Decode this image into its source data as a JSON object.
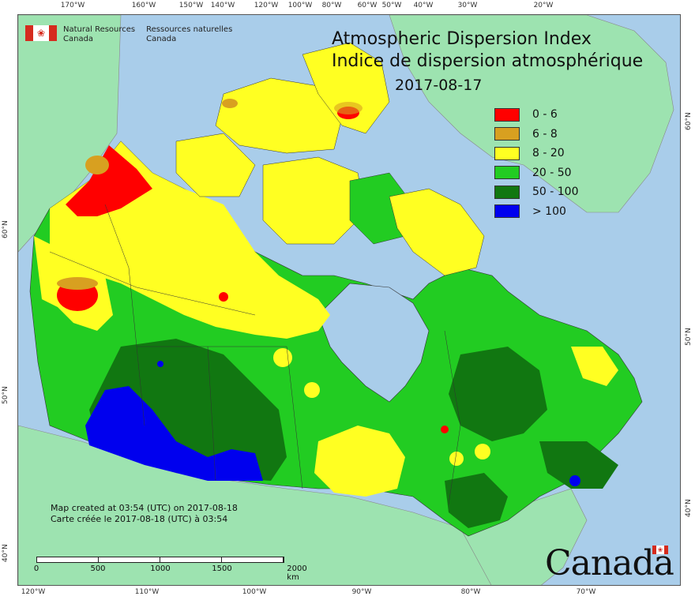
{
  "map": {
    "title_en": "Atmospheric Dispersion Index",
    "title_fr": "Indice de dispersion atmosphérique",
    "date": "2017-08-17",
    "org_en_line1": "Natural Resources",
    "org_en_line2": "Canada",
    "org_fr_line1": "Ressources naturelles",
    "org_fr_line2": "Canada",
    "credit_en": "Map created at 03:54 (UTC) on 2017-08-18",
    "credit_fr": "Carte créée le 2017-08-18 (UTC) à 03:54",
    "wordmark": "Canada",
    "legend": [
      {
        "label": "0 - 6",
        "color": "#ff0000"
      },
      {
        "label": "6 - 8",
        "color": "#d8a020"
      },
      {
        "label": "8 - 20",
        "color": "#ffff22"
      },
      {
        "label": "20 - 50",
        "color": "#22cc22"
      },
      {
        "label": "50 - 100",
        "color": "#117711"
      },
      {
        "label": "> 100",
        "color": "#0000ee"
      }
    ],
    "scale": {
      "labels": [
        "0",
        "500",
        "1000",
        "1500",
        "2000 km"
      ]
    },
    "top_ticks": [
      "170°W",
      "160°W",
      "150°W",
      "140°W",
      "120°W",
      "100°W",
      "80°W",
      "60°W",
      "50°W",
      "40°W",
      "30°W",
      "20°W"
    ],
    "bottom_ticks": [
      "120°W",
      "110°W",
      "100°W",
      "90°W",
      "80°W",
      "70°W"
    ],
    "left_ticks": [
      "60°N",
      "50°N",
      "40°N"
    ],
    "right_ticks": [
      "60°N",
      "50°N",
      "40°N"
    ],
    "colors": {
      "ocean": "#a9cdea",
      "land_other": "#9de3b0",
      "border": "#333333"
    }
  }
}
